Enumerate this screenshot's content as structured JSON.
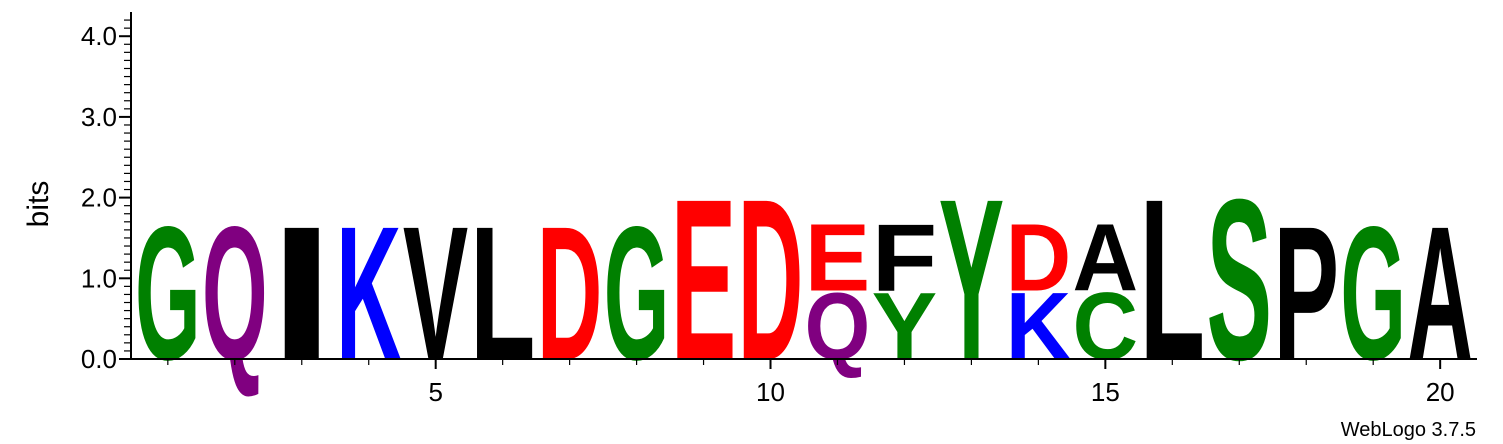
{
  "chart_data": {
    "type": "sequence-logo",
    "ylabel": "bits",
    "ylim": [
      0,
      4.3
    ],
    "y_ticks": [
      {
        "value": 0.0,
        "label": "0.0"
      },
      {
        "value": 1.0,
        "label": "1.0"
      },
      {
        "value": 2.0,
        "label": "2.0"
      },
      {
        "value": 3.0,
        "label": "3.0"
      },
      {
        "value": 4.0,
        "label": "4.0"
      }
    ],
    "x_ticks": [
      {
        "value": 5,
        "label": "5"
      },
      {
        "value": 10,
        "label": "10"
      },
      {
        "value": 15,
        "label": "15"
      },
      {
        "value": 20,
        "label": "20"
      }
    ],
    "xlim": [
      0.45,
      20.55
    ],
    "positions": [
      {
        "pos": 1,
        "stack": [
          {
            "letter": "G",
            "bits": 1.7,
            "color": "#008000"
          }
        ]
      },
      {
        "pos": 2,
        "stack": [
          {
            "letter": "Q",
            "bits": 1.7,
            "color": "#800080"
          }
        ]
      },
      {
        "pos": 3,
        "stack": [
          {
            "letter": "I",
            "bits": 1.7,
            "color": "#000000"
          }
        ]
      },
      {
        "pos": 4,
        "stack": [
          {
            "letter": "K",
            "bits": 1.7,
            "color": "#0000ff"
          }
        ]
      },
      {
        "pos": 5,
        "stack": [
          {
            "letter": "V",
            "bits": 1.7,
            "color": "#000000"
          }
        ]
      },
      {
        "pos": 6,
        "stack": [
          {
            "letter": "L",
            "bits": 1.7,
            "color": "#000000"
          }
        ]
      },
      {
        "pos": 7,
        "stack": [
          {
            "letter": "D",
            "bits": 1.7,
            "color": "#ff0000"
          }
        ]
      },
      {
        "pos": 8,
        "stack": [
          {
            "letter": "G",
            "bits": 1.7,
            "color": "#008000"
          }
        ]
      },
      {
        "pos": 9,
        "stack": [
          {
            "letter": "E",
            "bits": 2.05,
            "color": "#ff0000"
          }
        ]
      },
      {
        "pos": 10,
        "stack": [
          {
            "letter": "D",
            "bits": 2.05,
            "color": "#ff0000"
          }
        ]
      },
      {
        "pos": 11,
        "stack": [
          {
            "letter": "Q",
            "bits": 0.85,
            "color": "#800080"
          },
          {
            "letter": "E",
            "bits": 0.85,
            "color": "#ff0000"
          }
        ]
      },
      {
        "pos": 12,
        "stack": [
          {
            "letter": "Y",
            "bits": 0.85,
            "color": "#008000"
          },
          {
            "letter": "F",
            "bits": 0.85,
            "color": "#000000"
          }
        ]
      },
      {
        "pos": 13,
        "stack": [
          {
            "letter": "Y",
            "bits": 2.05,
            "color": "#008000"
          }
        ]
      },
      {
        "pos": 14,
        "stack": [
          {
            "letter": "K",
            "bits": 0.85,
            "color": "#0000ff"
          },
          {
            "letter": "D",
            "bits": 0.85,
            "color": "#ff0000"
          }
        ]
      },
      {
        "pos": 15,
        "stack": [
          {
            "letter": "C",
            "bits": 0.85,
            "color": "#008000"
          },
          {
            "letter": "A",
            "bits": 0.85,
            "color": "#000000"
          }
        ]
      },
      {
        "pos": 16,
        "stack": [
          {
            "letter": "L",
            "bits": 2.05,
            "color": "#000000"
          }
        ]
      },
      {
        "pos": 17,
        "stack": [
          {
            "letter": "S",
            "bits": 2.05,
            "color": "#008000"
          }
        ]
      },
      {
        "pos": 18,
        "stack": [
          {
            "letter": "P",
            "bits": 1.7,
            "color": "#000000"
          }
        ]
      },
      {
        "pos": 19,
        "stack": [
          {
            "letter": "G",
            "bits": 1.7,
            "color": "#008000"
          }
        ]
      },
      {
        "pos": 20,
        "stack": [
          {
            "letter": "A",
            "bits": 1.7,
            "color": "#000000"
          }
        ]
      }
    ]
  },
  "credit": "WebLogo 3.7.5"
}
